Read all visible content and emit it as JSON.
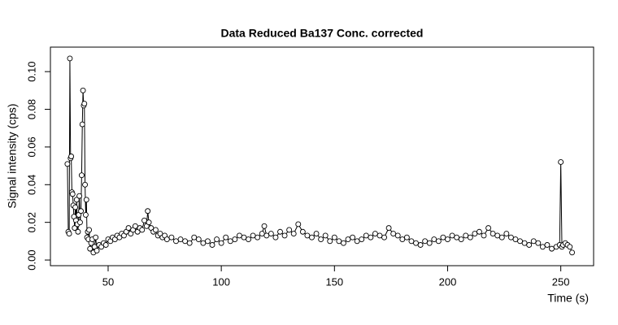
{
  "chart_data": {
    "type": "line",
    "title": "Data Reduced Ba137 Conc. corrected",
    "x_label": "Time (s)",
    "y_label": "Signal intensity (cps)",
    "color": "#000000",
    "xlim": [
      24.5,
      264.5
    ],
    "ylim": [
      -0.003,
      0.113
    ],
    "xticks": [
      50,
      100,
      150,
      200,
      250
    ],
    "yticks": [
      {
        "value": 0,
        "label": "0.00"
      },
      {
        "value": 0.02,
        "label": "0.02"
      },
      {
        "value": 0.04,
        "label": "0.04"
      },
      {
        "value": 0.06,
        "label": "0.06"
      },
      {
        "value": 0.08,
        "label": "0.08"
      },
      {
        "value": 0.1,
        "label": "0.10"
      }
    ],
    "x": [
      32.0,
      32.4,
      32.8,
      33.1,
      33.4,
      33.7,
      34.0,
      34.3,
      34.6,
      34.9,
      35.2,
      35.5,
      35.8,
      36.1,
      36.4,
      36.7,
      37.0,
      37.3,
      37.6,
      38.0,
      38.3,
      38.6,
      38.9,
      39.2,
      39.5,
      39.8,
      40.1,
      40.4,
      40.7,
      41.0,
      41.3,
      41.6,
      42.0,
      42.5,
      43,
      43.5,
      44,
      44.5,
      45,
      46,
      47,
      48,
      49,
      50,
      51,
      52,
      53,
      54,
      55,
      56,
      57,
      58,
      59,
      60,
      61,
      62,
      63,
      64,
      65,
      66,
      67,
      67.5,
      68,
      69,
      70,
      71,
      72,
      73,
      74,
      75,
      76,
      78,
      80,
      82,
      84,
      86,
      88,
      90,
      92,
      94,
      96,
      98,
      100,
      102,
      104,
      106,
      108,
      110,
      112,
      114,
      116,
      118,
      119,
      120,
      122,
      124,
      126,
      128,
      130,
      132,
      134,
      136,
      138,
      140,
      142,
      144,
      146,
      148,
      150,
      152,
      154,
      156,
      158,
      160,
      162,
      164,
      166,
      168,
      170,
      172,
      174,
      176,
      178,
      180,
      182,
      184,
      186,
      188,
      190,
      192,
      194,
      196,
      198,
      200,
      202,
      204,
      206,
      208,
      210,
      212,
      214,
      216,
      218,
      220,
      222,
      224,
      226,
      228,
      230,
      232,
      234,
      236,
      238,
      240,
      242,
      244,
      246,
      248,
      249.5,
      250,
      250.5,
      251,
      252,
      253,
      254,
      255
    ],
    "values": [
      0.051,
      0.015,
      0.014,
      0.107,
      0.054,
      0.055,
      0.036,
      0.035,
      0.029,
      0.023,
      0.017,
      0.028,
      0.021,
      0.032,
      0.019,
      0.015,
      0.024,
      0.034,
      0.02,
      0.026,
      0.045,
      0.072,
      0.09,
      0.082,
      0.083,
      0.04,
      0.024,
      0.032,
      0.012,
      0.015,
      0.011,
      0.016,
      0.006,
      0.009,
      0.011,
      0.004,
      0.007,
      0.012,
      0.005,
      0.008,
      0.007,
      0.009,
      0.008,
      0.011,
      0.01,
      0.012,
      0.011,
      0.013,
      0.012,
      0.014,
      0.013,
      0.015,
      0.017,
      0.014,
      0.016,
      0.018,
      0.015,
      0.017,
      0.016,
      0.021,
      0.018,
      0.026,
      0.02,
      0.017,
      0.015,
      0.016,
      0.013,
      0.014,
      0.012,
      0.013,
      0.011,
      0.012,
      0.01,
      0.011,
      0.01,
      0.009,
      0.012,
      0.011,
      0.009,
      0.01,
      0.008,
      0.011,
      0.009,
      0.012,
      0.01,
      0.011,
      0.013,
      0.012,
      0.011,
      0.013,
      0.012,
      0.014,
      0.018,
      0.013,
      0.014,
      0.012,
      0.015,
      0.013,
      0.016,
      0.014,
      0.019,
      0.015,
      0.013,
      0.012,
      0.014,
      0.011,
      0.013,
      0.01,
      0.012,
      0.01,
      0.009,
      0.011,
      0.012,
      0.01,
      0.011,
      0.013,
      0.012,
      0.014,
      0.013,
      0.012,
      0.017,
      0.014,
      0.013,
      0.011,
      0.012,
      0.01,
      0.009,
      0.008,
      0.01,
      0.009,
      0.011,
      0.01,
      0.012,
      0.011,
      0.013,
      0.012,
      0.011,
      0.013,
      0.012,
      0.014,
      0.015,
      0.013,
      0.017,
      0.014,
      0.013,
      0.012,
      0.014,
      0.012,
      0.011,
      0.01,
      0.009,
      0.008,
      0.01,
      0.009,
      0.007,
      0.008,
      0.006,
      0.007,
      0.008,
      0.052,
      0.007,
      0.008,
      0.009,
      0.008,
      0.007,
      0.004
    ]
  }
}
